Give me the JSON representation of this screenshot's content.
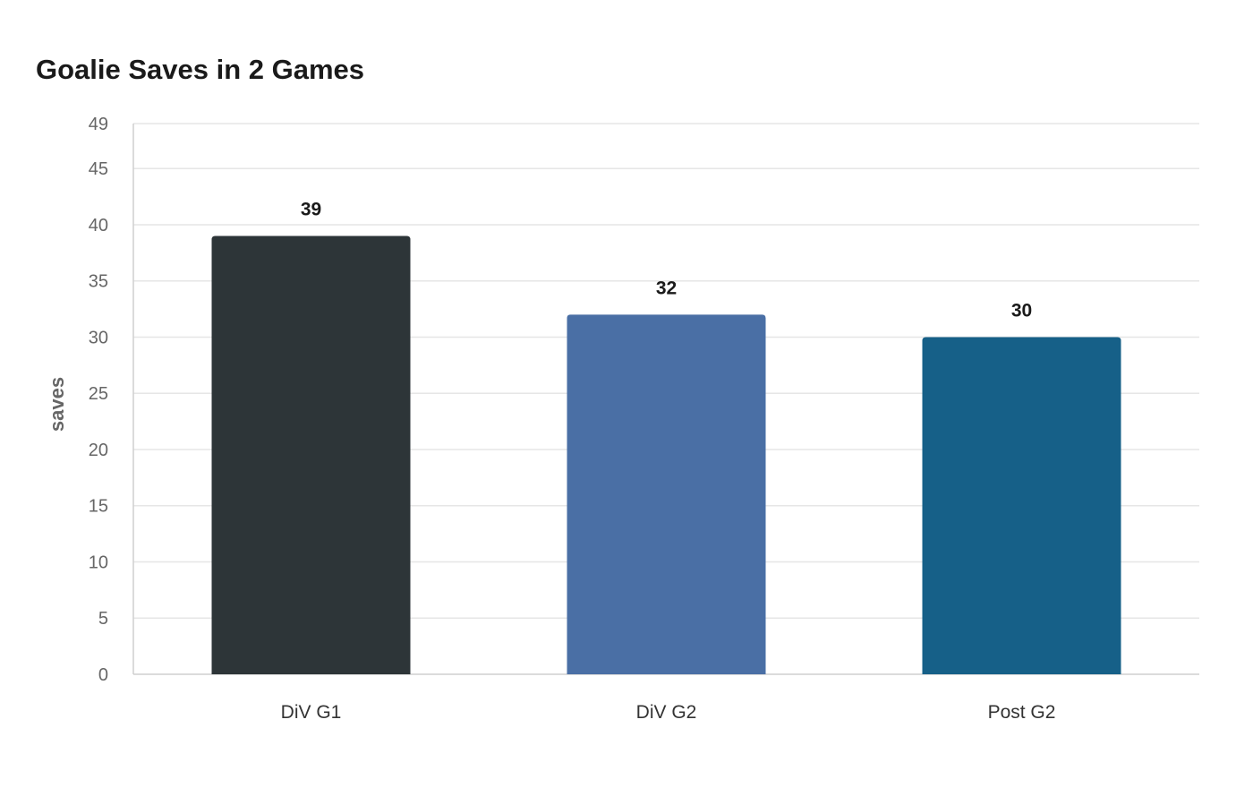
{
  "chart_data": {
    "type": "bar",
    "title": "Goalie Saves in 2 Games",
    "xlabel": "",
    "ylabel": "saves",
    "categories": [
      "DiV G1",
      "DiV G2",
      "Post G2"
    ],
    "values": [
      39,
      32,
      30
    ],
    "colors": [
      "#2d3538",
      "#4a6fa5",
      "#166088"
    ],
    "ylim": [
      0,
      49
    ],
    "yticks": [
      0,
      5,
      10,
      15,
      20,
      25,
      30,
      35,
      40,
      45,
      49
    ],
    "grid": true,
    "data_labels": true
  }
}
